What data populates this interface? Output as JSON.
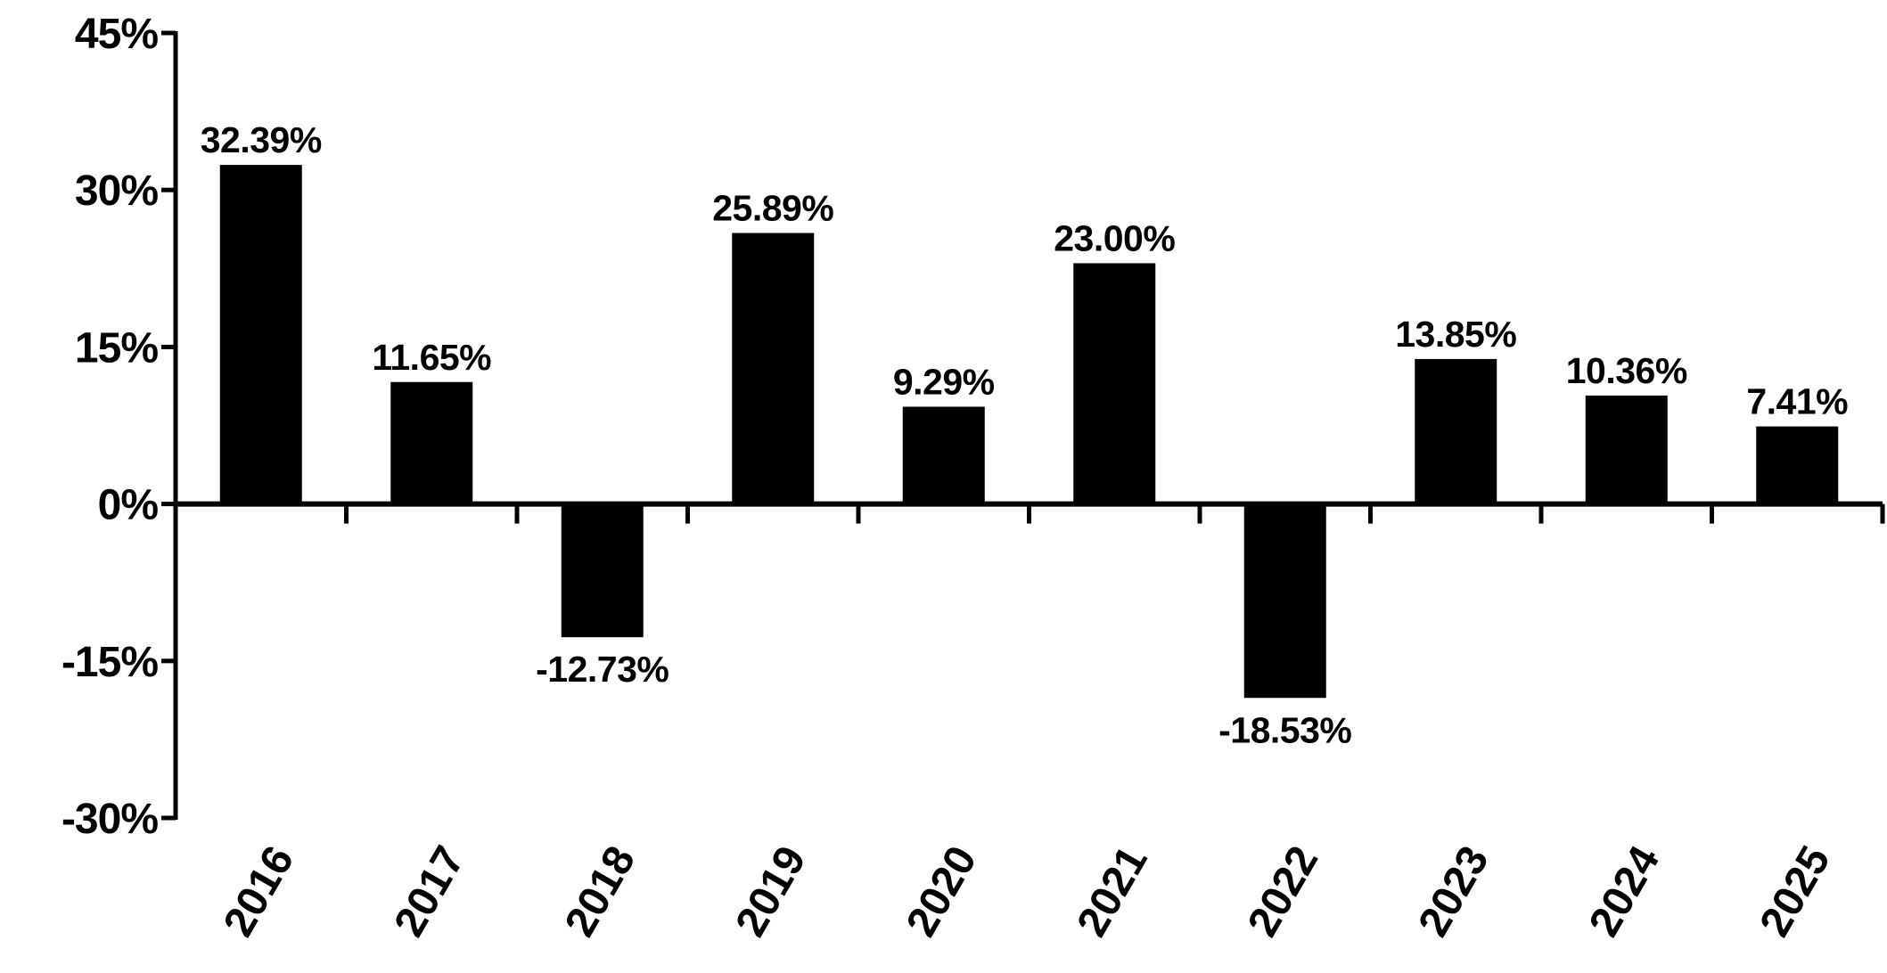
{
  "chart_data": {
    "type": "bar",
    "title": "",
    "xlabel": "",
    "ylabel": "",
    "categories": [
      "2016",
      "2017",
      "2018",
      "2019",
      "2020",
      "2021",
      "2022",
      "2023",
      "2024",
      "2025"
    ],
    "values": [
      32.39,
      11.65,
      -12.73,
      25.89,
      9.29,
      23.0,
      -18.53,
      13.85,
      10.36,
      7.41
    ],
    "data_labels": [
      "32.39%",
      "11.65%",
      "-12.73%",
      "25.89%",
      "9.29%",
      "23.00%",
      "-18.53%",
      "13.85%",
      "10.36%",
      "7.41%"
    ],
    "ylim": [
      -30,
      45
    ],
    "yticks": [
      45,
      30,
      15,
      0,
      -15,
      -30
    ],
    "ytick_labels": [
      "45%",
      "30%",
      "15%",
      "0%",
      "-15%",
      "-30%"
    ],
    "grid": false,
    "legend": "none",
    "bar_color": "#000000"
  }
}
